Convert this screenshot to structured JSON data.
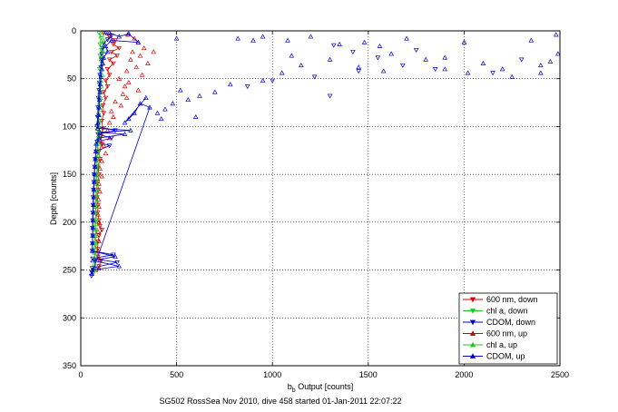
{
  "chart_data": {
    "type": "scatter",
    "title": "",
    "caption": "SG502 RossSea Nov 2010, dive 458 started 01-Jan-2011 22:07:22",
    "xlabel_main": "b",
    "xlabel_sub": "b",
    "xlabel_rest": " Output [counts]",
    "ylabel": "Depth [counts]",
    "xlim": [
      0,
      2500
    ],
    "ylim": [
      0,
      350
    ],
    "y_reversed": true,
    "grid": true,
    "legend_position": "bottom-right",
    "x_ticks": [
      "0",
      "500",
      "1000",
      "1500",
      "2000",
      "2500"
    ],
    "y_ticks": [
      "0",
      "50",
      "100",
      "150",
      "200",
      "250",
      "300",
      "350"
    ],
    "series": [
      {
        "name": "600 nm, down",
        "color": "#d40000",
        "marker": "triangle-down",
        "line": true,
        "points": [
          [
            120,
            2
          ],
          [
            150,
            6
          ],
          [
            180,
            10
          ],
          [
            170,
            14
          ],
          [
            200,
            18
          ],
          [
            160,
            22
          ],
          [
            190,
            26
          ],
          [
            150,
            30
          ],
          [
            170,
            34
          ],
          [
            140,
            40
          ],
          [
            150,
            46
          ],
          [
            130,
            52
          ],
          [
            140,
            58
          ],
          [
            120,
            64
          ],
          [
            130,
            70
          ],
          [
            115,
            78
          ],
          [
            120,
            86
          ],
          [
            110,
            94
          ],
          [
            115,
            102
          ],
          [
            105,
            110
          ],
          [
            110,
            118
          ],
          [
            95,
            126
          ],
          [
            100,
            134
          ],
          [
            90,
            142
          ],
          [
            95,
            150
          ],
          [
            88,
            158
          ],
          [
            92,
            166
          ],
          [
            85,
            174
          ],
          [
            90,
            182
          ],
          [
            88,
            190
          ],
          [
            95,
            198
          ],
          [
            100,
            204
          ],
          [
            110,
            208
          ],
          [
            95,
            214
          ],
          [
            90,
            220
          ],
          [
            88,
            228
          ],
          [
            90,
            236
          ],
          [
            105,
            240
          ],
          [
            95,
            246
          ],
          [
            85,
            250
          ]
        ]
      },
      {
        "name": "chl a, down",
        "color": "#1ec81e",
        "marker": "triangle-down",
        "line": true,
        "points": [
          [
            95,
            2
          ],
          [
            105,
            8
          ],
          [
            100,
            14
          ],
          [
            108,
            20
          ],
          [
            100,
            26
          ],
          [
            106,
            32
          ],
          [
            98,
            40
          ],
          [
            102,
            48
          ],
          [
            96,
            56
          ],
          [
            100,
            64
          ],
          [
            95,
            72
          ],
          [
            98,
            80
          ],
          [
            92,
            88
          ],
          [
            95,
            96
          ],
          [
            90,
            104
          ],
          [
            92,
            112
          ],
          [
            86,
            120
          ],
          [
            88,
            128
          ],
          [
            84,
            136
          ],
          [
            86,
            144
          ],
          [
            82,
            152
          ],
          [
            84,
            160
          ],
          [
            80,
            168
          ],
          [
            82,
            176
          ],
          [
            78,
            184
          ],
          [
            80,
            192
          ],
          [
            76,
            200
          ],
          [
            78,
            208
          ],
          [
            75,
            216
          ],
          [
            77,
            224
          ],
          [
            73,
            232
          ],
          [
            75,
            240
          ],
          [
            72,
            248
          ],
          [
            70,
            252
          ]
        ]
      },
      {
        "name": "CDOM, down",
        "color": "#0000c8",
        "marker": "triangle-down",
        "line": true,
        "points": [
          [
            130,
            2
          ],
          [
            160,
            5
          ],
          [
            140,
            9
          ],
          [
            120,
            13
          ],
          [
            115,
            18
          ],
          [
            110,
            24
          ],
          [
            108,
            30
          ],
          [
            105,
            38
          ],
          [
            100,
            46
          ],
          [
            98,
            54
          ],
          [
            95,
            62
          ],
          [
            92,
            70
          ],
          [
            90,
            80
          ],
          [
            88,
            90
          ],
          [
            85,
            100
          ],
          [
            180,
            104
          ],
          [
            90,
            108
          ],
          [
            160,
            112
          ],
          [
            85,
            116
          ],
          [
            150,
            120
          ],
          [
            80,
            126
          ],
          [
            75,
            134
          ],
          [
            72,
            142
          ],
          [
            70,
            150
          ],
          [
            68,
            158
          ],
          [
            66,
            166
          ],
          [
            65,
            174
          ],
          [
            64,
            182
          ],
          [
            63,
            190
          ],
          [
            62,
            198
          ],
          [
            61,
            206
          ],
          [
            62,
            214
          ],
          [
            61,
            222
          ],
          [
            60,
            230
          ],
          [
            170,
            234
          ],
          [
            62,
            238
          ],
          [
            190,
            242
          ],
          [
            60,
            248
          ],
          [
            58,
            252
          ],
          [
            56,
            256
          ],
          [
            1320,
            15
          ],
          [
            1420,
            22
          ],
          [
            1550,
            28
          ],
          [
            1680,
            36
          ],
          [
            1850,
            40
          ],
          [
            2150,
            44
          ],
          [
            2300,
            30
          ],
          [
            1220,
            48
          ],
          [
            1000,
            52
          ],
          [
            870,
            58
          ],
          [
            1300,
            68
          ],
          [
            1450,
            42
          ],
          [
            1750,
            20
          ]
        ]
      },
      {
        "name": "600 nm, up",
        "color": "#d40000",
        "marker": "triangle-up",
        "line": false,
        "points": [
          [
            245,
            4
          ],
          [
            280,
            8
          ],
          [
            300,
            12
          ],
          [
            330,
            18
          ],
          [
            270,
            22
          ],
          [
            310,
            26
          ],
          [
            260,
            30
          ],
          [
            350,
            34
          ],
          [
            290,
            38
          ],
          [
            240,
            42
          ],
          [
            320,
            46
          ],
          [
            380,
            22
          ],
          [
            200,
            50
          ],
          [
            250,
            54
          ],
          [
            230,
            58
          ],
          [
            300,
            62
          ],
          [
            220,
            66
          ],
          [
            240,
            70
          ],
          [
            180,
            74
          ],
          [
            210,
            78
          ],
          [
            160,
            84
          ],
          [
            170,
            90
          ],
          [
            150,
            96
          ],
          [
            140,
            104
          ],
          [
            150,
            112
          ],
          [
            120,
            120
          ],
          [
            130,
            128
          ],
          [
            110,
            136
          ],
          [
            100,
            144
          ],
          [
            110,
            152
          ],
          [
            95,
            160
          ],
          [
            100,
            168
          ],
          [
            92,
            176
          ],
          [
            95,
            184
          ],
          [
            90,
            192
          ],
          [
            95,
            200
          ],
          [
            90,
            210
          ],
          [
            95,
            220
          ],
          [
            90,
            230
          ],
          [
            100,
            240
          ],
          [
            95,
            248
          ]
        ]
      },
      {
        "name": "chl a, up",
        "color": "#1ec81e",
        "marker": "triangle-up",
        "line": false,
        "points": [
          [
            110,
            4
          ],
          [
            120,
            10
          ],
          [
            115,
            16
          ],
          [
            118,
            22
          ],
          [
            112,
            28
          ],
          [
            115,
            34
          ],
          [
            108,
            40
          ],
          [
            112,
            46
          ],
          [
            105,
            52
          ],
          [
            108,
            58
          ],
          [
            102,
            64
          ],
          [
            104,
            70
          ],
          [
            100,
            76
          ],
          [
            102,
            82
          ],
          [
            97,
            88
          ],
          [
            99,
            94
          ],
          [
            95,
            100
          ],
          [
            96,
            106
          ],
          [
            92,
            112
          ],
          [
            94,
            118
          ],
          [
            90,
            124
          ],
          [
            91,
            130
          ],
          [
            88,
            136
          ],
          [
            89,
            142
          ],
          [
            86,
            148
          ],
          [
            87,
            154
          ],
          [
            84,
            160
          ],
          [
            85,
            166
          ],
          [
            82,
            172
          ],
          [
            83,
            178
          ],
          [
            80,
            184
          ],
          [
            81,
            190
          ],
          [
            78,
            196
          ],
          [
            79,
            202
          ],
          [
            76,
            208
          ],
          [
            77,
            214
          ],
          [
            74,
            220
          ],
          [
            75,
            226
          ],
          [
            72,
            232
          ],
          [
            73,
            238
          ],
          [
            70,
            244
          ],
          [
            71,
            250
          ]
        ]
      },
      {
        "name": "CDOM, up",
        "color": "#0000c8",
        "marker": "triangle-up",
        "line": true,
        "points": [
          [
            150,
            2
          ],
          [
            200,
            6
          ],
          [
            250,
            3
          ],
          [
            300,
            12
          ],
          [
            160,
            10
          ],
          [
            130,
            16
          ],
          [
            140,
            22
          ],
          [
            120,
            28
          ],
          [
            115,
            34
          ],
          [
            110,
            40
          ],
          [
            105,
            48
          ],
          [
            102,
            56
          ],
          [
            100,
            64
          ],
          [
            98,
            72
          ],
          [
            95,
            80
          ],
          [
            92,
            88
          ],
          [
            90,
            96
          ],
          [
            88,
            102
          ],
          [
            260,
            104
          ],
          [
            100,
            106
          ],
          [
            230,
            108
          ],
          [
            95,
            112
          ],
          [
            80,
            118
          ],
          [
            78,
            126
          ],
          [
            76,
            134
          ],
          [
            74,
            142
          ],
          [
            72,
            150
          ],
          [
            70,
            158
          ],
          [
            68,
            166
          ],
          [
            67,
            174
          ],
          [
            66,
            182
          ],
          [
            65,
            190
          ],
          [
            64,
            198
          ],
          [
            63,
            206
          ],
          [
            62,
            214
          ],
          [
            61,
            222
          ],
          [
            60,
            230
          ],
          [
            180,
            236
          ],
          [
            62,
            240
          ],
          [
            200,
            246
          ],
          [
            60,
            250
          ],
          [
            58,
            254
          ],
          [
            500,
            8
          ],
          [
            820,
            8
          ],
          [
            900,
            10
          ],
          [
            950,
            6
          ],
          [
            1080,
            10
          ],
          [
            1200,
            6
          ],
          [
            1350,
            14
          ],
          [
            1480,
            12
          ],
          [
            1560,
            16
          ],
          [
            1620,
            24
          ],
          [
            1700,
            8
          ],
          [
            1800,
            30
          ],
          [
            1900,
            28
          ],
          [
            2000,
            12
          ],
          [
            2100,
            34
          ],
          [
            2200,
            40
          ],
          [
            2350,
            10
          ],
          [
            2400,
            36
          ],
          [
            2450,
            32
          ],
          [
            2480,
            4
          ],
          [
            2490,
            24
          ],
          [
            1900,
            40
          ],
          [
            2020,
            44
          ],
          [
            2250,
            48
          ],
          [
            2400,
            44
          ],
          [
            1450,
            38
          ],
          [
            1300,
            30
          ],
          [
            1100,
            26
          ],
          [
            950,
            52
          ],
          [
            780,
            56
          ],
          [
            700,
            64
          ],
          [
            620,
            68
          ],
          [
            560,
            72
          ],
          [
            520,
            62
          ],
          [
            480,
            76
          ],
          [
            440,
            82
          ],
          [
            400,
            86
          ],
          [
            360,
            80
          ],
          [
            310,
            76
          ],
          [
            280,
            86
          ],
          [
            250,
            92
          ],
          [
            230,
            96
          ],
          [
            600,
            90
          ],
          [
            420,
            92
          ],
          [
            340,
            70
          ],
          [
            1150,
            36
          ],
          [
            1050,
            44
          ],
          [
            1580,
            42
          ]
        ]
      }
    ]
  }
}
